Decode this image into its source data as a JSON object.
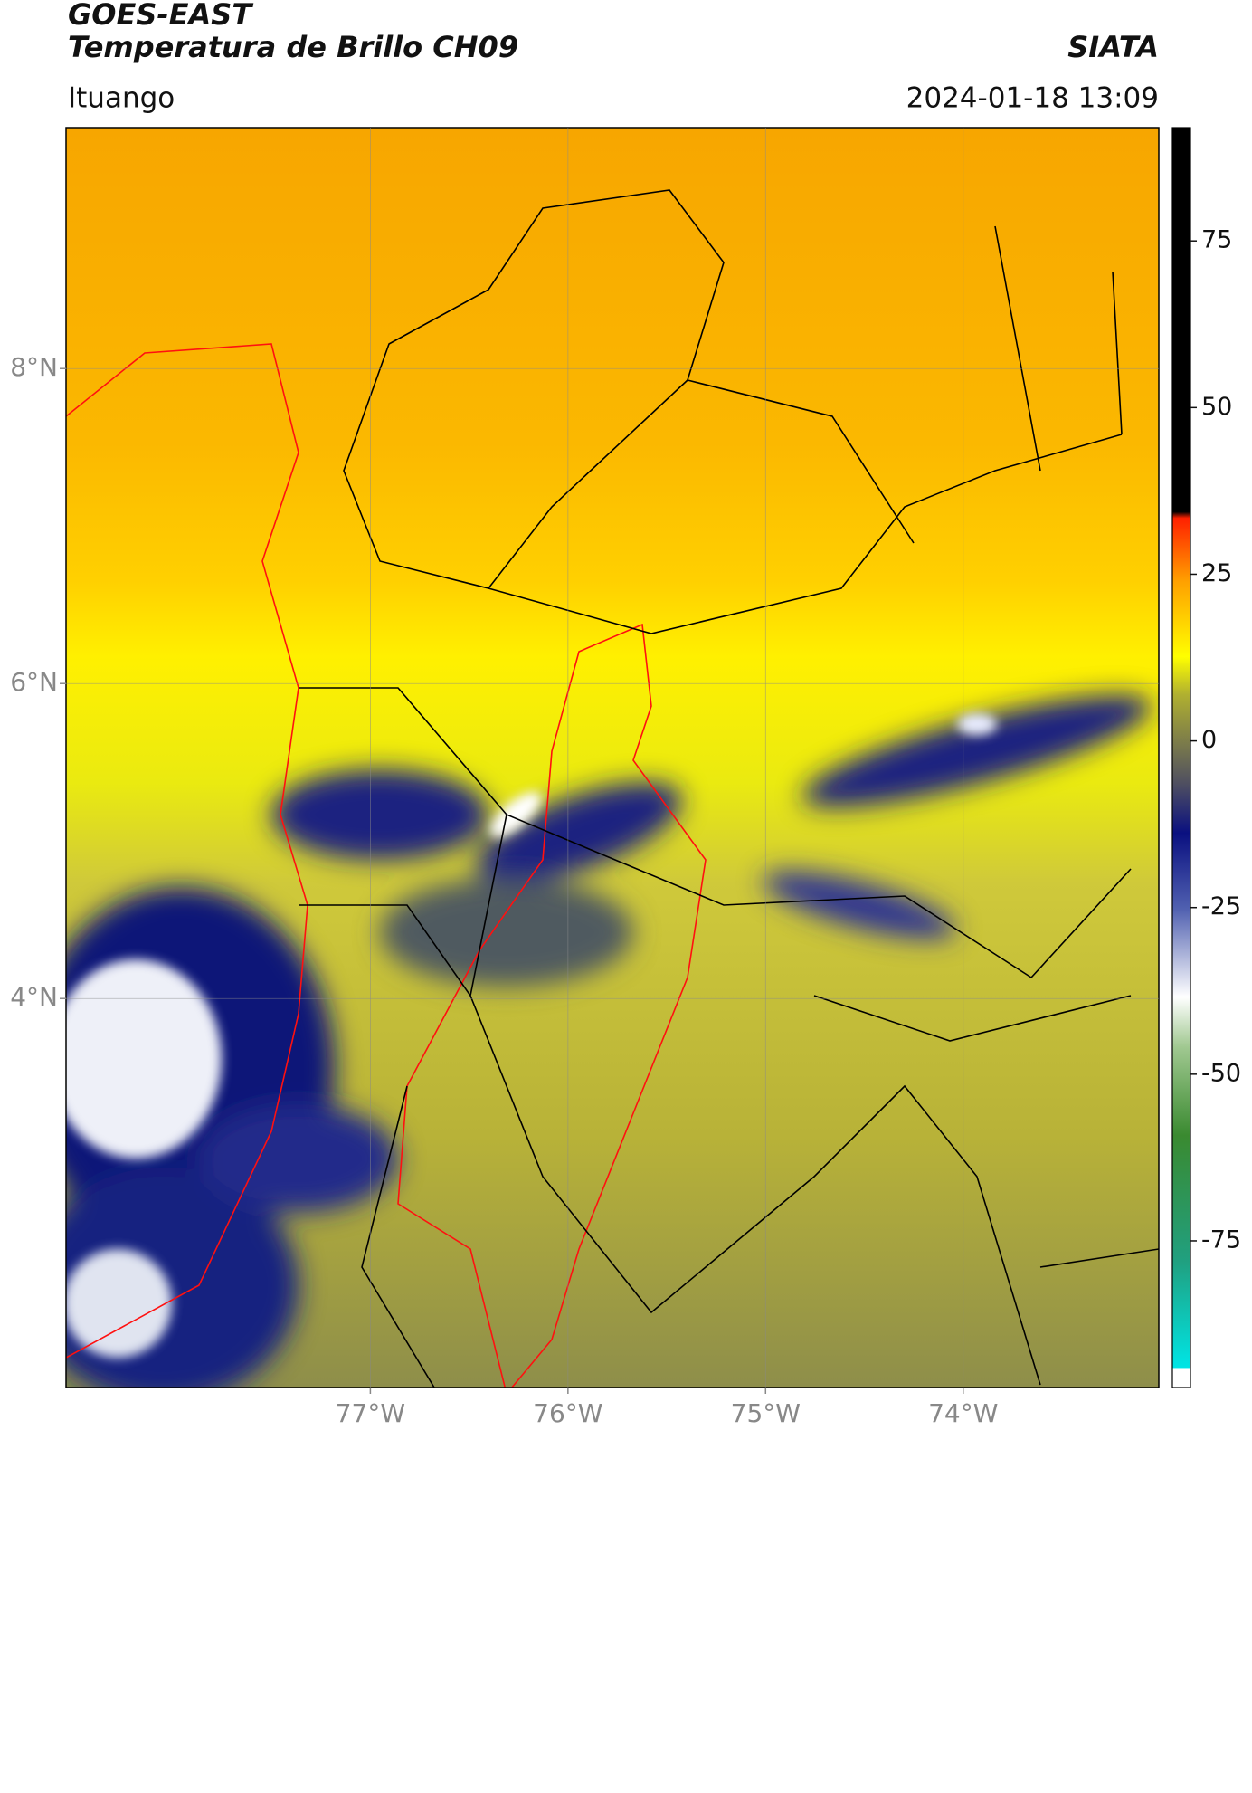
{
  "chart_data": {
    "type": "map",
    "title": "GOES-EAST",
    "subtitle": "Temperatura de Brillo CH09",
    "source": "SIATA",
    "location": "Ituango",
    "datetime": "2024-01-18 13:09",
    "xlim": [
      -78.54,
      -73.01
    ],
    "ylim": [
      1.53,
      9.53
    ],
    "xticks": [
      {
        "value": -77,
        "label": "77°W"
      },
      {
        "value": -76,
        "label": "76°W"
      },
      {
        "value": -75,
        "label": "75°W"
      },
      {
        "value": -74,
        "label": "74°W"
      }
    ],
    "yticks": [
      {
        "value": 8,
        "label": "8°N"
      },
      {
        "value": 6,
        "label": "6°N"
      },
      {
        "value": 4,
        "label": "4°N"
      }
    ],
    "grid": true,
    "colorbar": {
      "clim": [
        -97,
        92
      ],
      "ticks": [
        75,
        50,
        25,
        0,
        -25,
        -50,
        -75
      ]
    }
  }
}
